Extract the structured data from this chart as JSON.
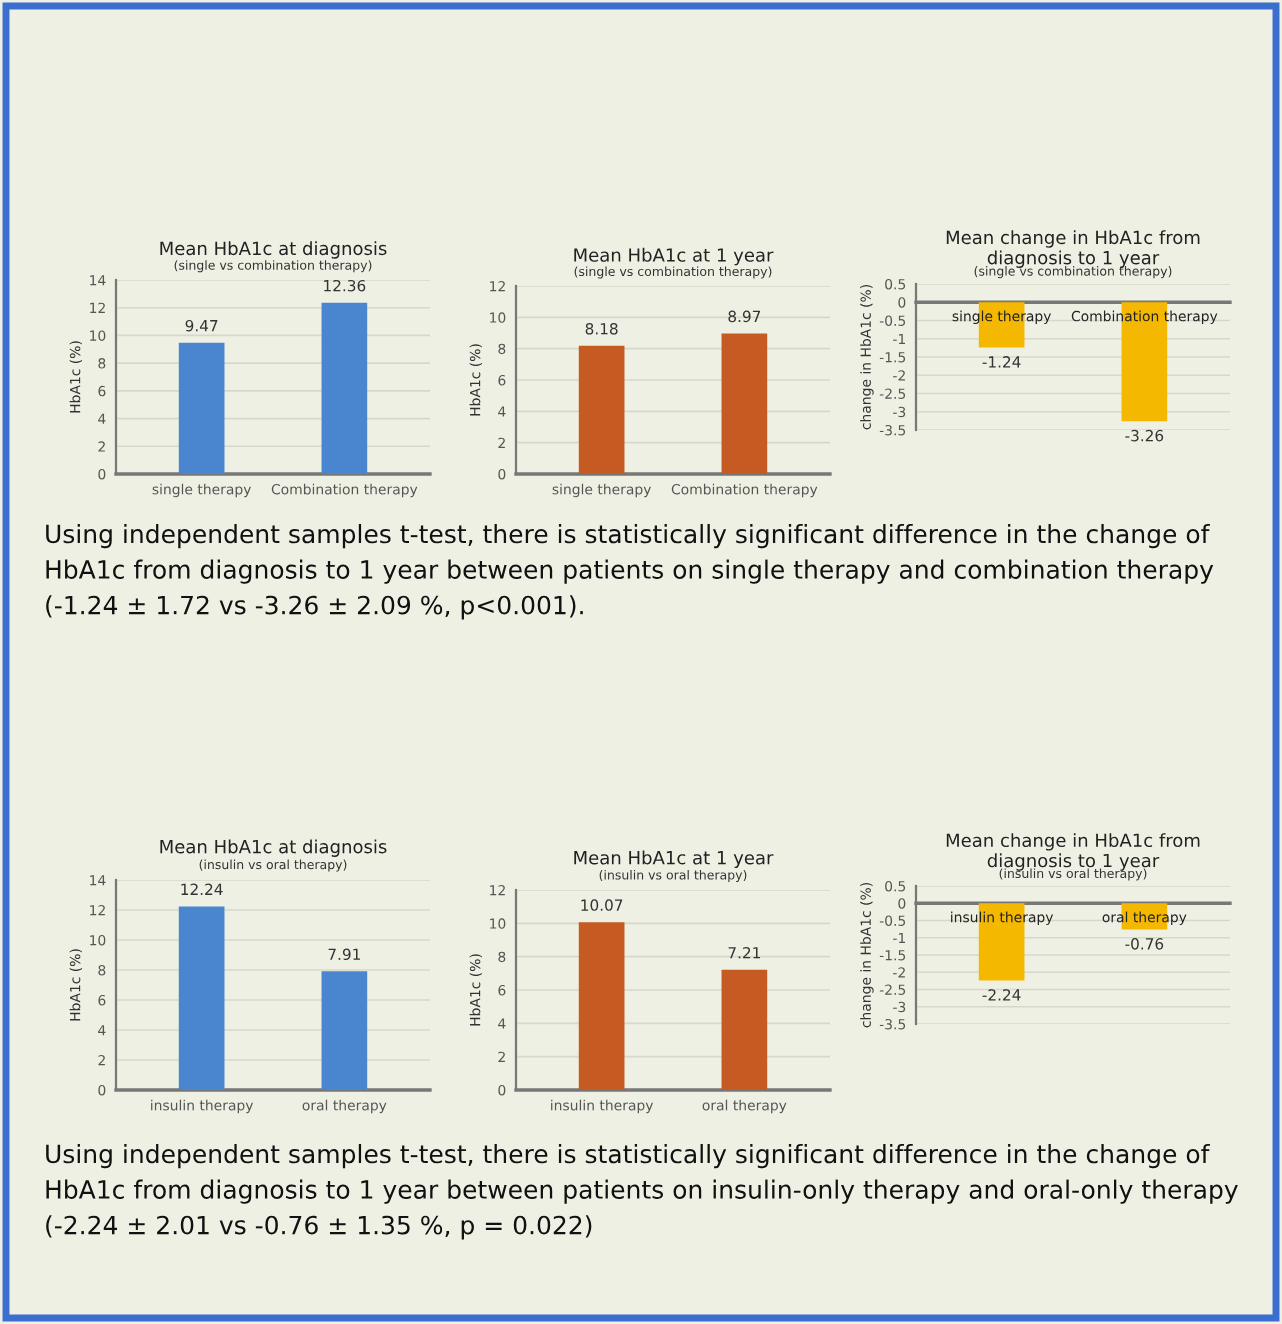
{
  "chart_data": [
    {
      "type": "bar",
      "title": "Mean HbA1c at diagnosis",
      "subtitle": "(single vs combination therapy)",
      "ylabel": "HbA1c (%)",
      "categories": [
        "single therapy",
        "Combination therapy"
      ],
      "values": [
        9.47,
        12.36
      ],
      "color": "#4a86d0",
      "ylim": [
        0,
        14
      ],
      "yticks": [
        0,
        2,
        4,
        6,
        8,
        10,
        12,
        14
      ],
      "grid": "y",
      "data_labels": true
    },
    {
      "type": "bar",
      "title": "Mean HbA1c at 1 year",
      "subtitle": "(single vs combination therapy)",
      "ylabel": "HbA1c (%)",
      "categories": [
        "single therapy",
        "Combination therapy"
      ],
      "values": [
        8.18,
        8.97
      ],
      "color": "#c55a22",
      "ylim": [
        0,
        12
      ],
      "yticks": [
        0,
        2,
        4,
        6,
        8,
        10,
        12
      ],
      "grid": "y",
      "data_labels": true
    },
    {
      "type": "bar",
      "title": "Mean change in HbA1c from\ndiagnosis to 1 year",
      "subtitle": "(single vs combination therapy)",
      "ylabel": "change in HbA1c (%)",
      "categories": [
        "single therapy",
        "Combination therapy"
      ],
      "values": [
        -1.24,
        -3.26
      ],
      "color": "#f5b800",
      "ylim": [
        -3.5,
        0.5
      ],
      "yticks": [
        0.5,
        0,
        -0.5,
        -1,
        -1.5,
        -2,
        -2.5,
        -3,
        -3.5
      ],
      "grid": "y",
      "data_labels": true,
      "annotations": [
        "Using independent samples t-test, there is statistically significant difference in the change of HbA1c from diagnosis to 1 year between patients on single therapy and combination therapy (-1.24 ± 1.72 vs -3.26 ± 2.09 %, p<0.001)."
      ]
    },
    {
      "type": "bar",
      "title": "Mean HbA1c at diagnosis",
      "subtitle": "(insulin vs oral therapy)",
      "ylabel": "HbA1c (%)",
      "categories": [
        "insulin therapy",
        "oral therapy"
      ],
      "values": [
        12.24,
        7.91
      ],
      "color": "#4a86d0",
      "ylim": [
        0,
        14
      ],
      "yticks": [
        0,
        2,
        4,
        6,
        8,
        10,
        12,
        14
      ],
      "grid": "y",
      "data_labels": true
    },
    {
      "type": "bar",
      "title": "Mean HbA1c at 1 year",
      "subtitle": "(insulin vs oral therapy)",
      "ylabel": "HbA1c (%)",
      "categories": [
        "insulin therapy",
        "oral therapy"
      ],
      "values": [
        10.07,
        7.21
      ],
      "color": "#c55a22",
      "ylim": [
        0,
        12
      ],
      "yticks": [
        0,
        2,
        4,
        6,
        8,
        10,
        12
      ],
      "grid": "y",
      "data_labels": true
    },
    {
      "type": "bar",
      "title": "Mean change in HbA1c from\ndiagnosis to 1 year",
      "subtitle": "(insulin vs oral therapy)",
      "ylabel": "change in HbA1c (%)",
      "categories": [
        "insulin therapy",
        "oral therapy"
      ],
      "values": [
        -2.24,
        -0.76
      ],
      "color": "#f5b800",
      "ylim": [
        -3.5,
        0.5
      ],
      "yticks": [
        0.5,
        0,
        -0.5,
        -1,
        -1.5,
        -2,
        -2.5,
        -3,
        -3.5
      ],
      "grid": "y",
      "data_labels": true,
      "annotations": [
        "Using independent samples t-test, there is statistically significant difference in the change of HbA1c from diagnosis to 1 year between patients on insulin-only therapy and oral-only therapy (-2.24 ± 2.01 vs -0.76 ± 1.35 %, p = 0.022)"
      ]
    }
  ]
}
